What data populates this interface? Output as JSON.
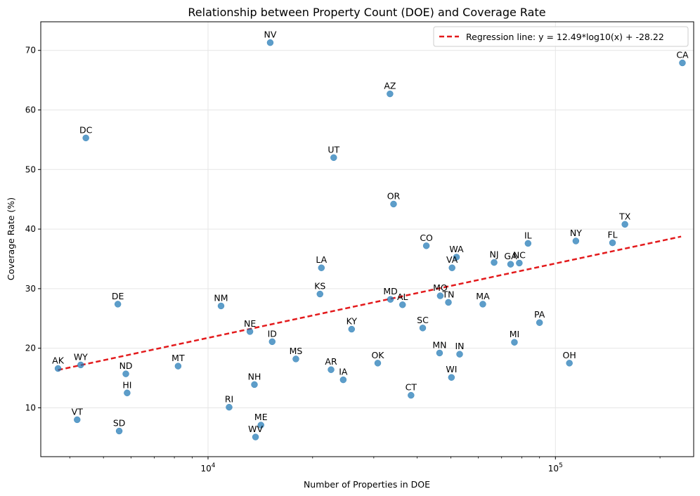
{
  "chart_data": {
    "type": "scatter",
    "title": "Relationship between Property Count (DOE) and Coverage Rate",
    "xlabel": "Number of Properties in DOE",
    "ylabel": "Coverage Rate (%)",
    "x_scale": "log",
    "xlim": [
      3300,
      250000
    ],
    "ylim": [
      1.8,
      74.8
    ],
    "x_ticks": [
      {
        "value": 10000,
        "base": "10",
        "exp": "4"
      },
      {
        "value": 100000,
        "base": "10",
        "exp": "5"
      }
    ],
    "y_ticks": [
      10,
      20,
      30,
      40,
      50,
      60,
      70
    ],
    "grid": true,
    "legend_position": "top-right",
    "point_color": "#1f77b4",
    "line_color": "#e31a1c",
    "regression": {
      "label": "Regression line: y = 12.49*log10(x) + -28.22",
      "slope": 12.49,
      "intercept": -28.22,
      "x_range": [
        3700,
        230000
      ]
    },
    "points": [
      {
        "label": "AK",
        "x": 3700,
        "y": 16.6
      },
      {
        "label": "VT",
        "x": 4200,
        "y": 8.0
      },
      {
        "label": "WY",
        "x": 4300,
        "y": 17.2
      },
      {
        "label": "DC",
        "x": 4450,
        "y": 55.3
      },
      {
        "label": "DE",
        "x": 5500,
        "y": 27.4
      },
      {
        "label": "SD",
        "x": 5550,
        "y": 6.1
      },
      {
        "label": "ND",
        "x": 5800,
        "y": 15.7
      },
      {
        "label": "HI",
        "x": 5850,
        "y": 12.5
      },
      {
        "label": "MT",
        "x": 8200,
        "y": 17.0
      },
      {
        "label": "NM",
        "x": 10900,
        "y": 27.1
      },
      {
        "label": "RI",
        "x": 11500,
        "y": 10.1
      },
      {
        "label": "NE",
        "x": 13200,
        "y": 22.8
      },
      {
        "label": "NH",
        "x": 13600,
        "y": 13.9
      },
      {
        "label": "WV",
        "x": 13700,
        "y": 5.1
      },
      {
        "label": "ME",
        "x": 14200,
        "y": 7.1
      },
      {
        "label": "NV",
        "x": 15100,
        "y": 71.3
      },
      {
        "label": "ID",
        "x": 15300,
        "y": 21.1
      },
      {
        "label": "MS",
        "x": 17900,
        "y": 18.2
      },
      {
        "label": "KS",
        "x": 21000,
        "y": 29.1
      },
      {
        "label": "LA",
        "x": 21200,
        "y": 33.5
      },
      {
        "label": "AR",
        "x": 22600,
        "y": 16.4
      },
      {
        "label": "UT",
        "x": 23000,
        "y": 52.0
      },
      {
        "label": "IA",
        "x": 24500,
        "y": 14.7
      },
      {
        "label": "KY",
        "x": 25900,
        "y": 23.2
      },
      {
        "label": "OK",
        "x": 30800,
        "y": 17.5
      },
      {
        "label": "AZ",
        "x": 33400,
        "y": 62.7
      },
      {
        "label": "MD",
        "x": 33500,
        "y": 28.2
      },
      {
        "label": "OR",
        "x": 34200,
        "y": 44.2
      },
      {
        "label": "AL",
        "x": 36300,
        "y": 27.3
      },
      {
        "label": "CT",
        "x": 38400,
        "y": 12.1
      },
      {
        "label": "SC",
        "x": 41500,
        "y": 23.4
      },
      {
        "label": "CO",
        "x": 42500,
        "y": 37.2
      },
      {
        "label": "MN",
        "x": 46400,
        "y": 19.2
      },
      {
        "label": "MO",
        "x": 46600,
        "y": 28.8
      },
      {
        "label": "TN",
        "x": 49200,
        "y": 27.7
      },
      {
        "label": "WI",
        "x": 50200,
        "y": 15.1
      },
      {
        "label": "VA",
        "x": 50400,
        "y": 33.5
      },
      {
        "label": "WA",
        "x": 51900,
        "y": 35.3
      },
      {
        "label": "IN",
        "x": 53000,
        "y": 19.0
      },
      {
        "label": "MA",
        "x": 61800,
        "y": 27.4
      },
      {
        "label": "NJ",
        "x": 66600,
        "y": 34.4
      },
      {
        "label": "GA",
        "x": 74300,
        "y": 34.1
      },
      {
        "label": "MI",
        "x": 76200,
        "y": 21.0
      },
      {
        "label": "NC",
        "x": 78700,
        "y": 34.3
      },
      {
        "label": "IL",
        "x": 83400,
        "y": 37.6
      },
      {
        "label": "PA",
        "x": 90000,
        "y": 24.3
      },
      {
        "label": "OH",
        "x": 109700,
        "y": 17.5
      },
      {
        "label": "NY",
        "x": 114500,
        "y": 38.0
      },
      {
        "label": "FL",
        "x": 146000,
        "y": 37.7
      },
      {
        "label": "TX",
        "x": 158500,
        "y": 40.8
      },
      {
        "label": "CA",
        "x": 232000,
        "y": 67.9
      }
    ]
  }
}
